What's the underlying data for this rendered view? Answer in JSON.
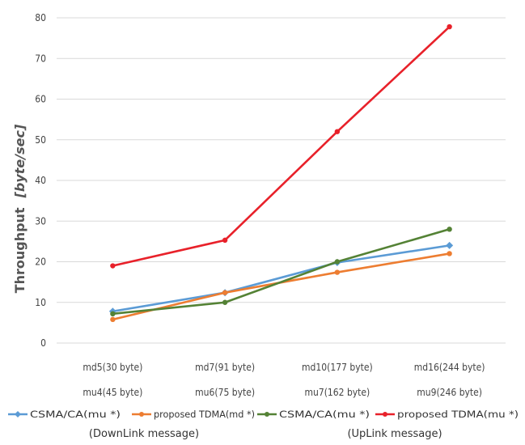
{
  "chart_data": {
    "type": "line",
    "ylabel": "Throughput",
    "ylabel_unit": "[byte/sec]",
    "ylim": [
      0,
      80
    ],
    "yticks": [
      0,
      10,
      20,
      30,
      40,
      50,
      60,
      70,
      80
    ],
    "grid": true,
    "legend_position": "bottom",
    "categories": [
      [
        "md5(30 byte)",
        "mu4(45 byte)"
      ],
      [
        "md7(91 byte)",
        "mu6(75 byte)"
      ],
      [
        "md10(177 byte)",
        "mu7(162 byte)"
      ],
      [
        "md16(244 byte)",
        "mu9(246 byte)"
      ]
    ],
    "series": [
      {
        "name": "CSMA/CA(mu *)",
        "color": "#5b9bd5",
        "marker": "diamond",
        "values": [
          7.8,
          12.4,
          19.8,
          24
        ]
      },
      {
        "name": "proposed TDMA(md *)",
        "color": "#ed7d31",
        "marker": "circle",
        "values": [
          5.8,
          12.4,
          17.4,
          22
        ]
      },
      {
        "name": "CSMA/CA(mu *)",
        "color": "#548235",
        "marker": "circle",
        "values": [
          7.2,
          10,
          20,
          28
        ]
      },
      {
        "name": "proposed TDMA(mu *)",
        "color": "#e8212a",
        "marker": "circle",
        "values": [
          19,
          25.3,
          52,
          77.8
        ]
      }
    ],
    "annotations": [
      "(DownLink message)",
      "(UpLink message)"
    ]
  }
}
